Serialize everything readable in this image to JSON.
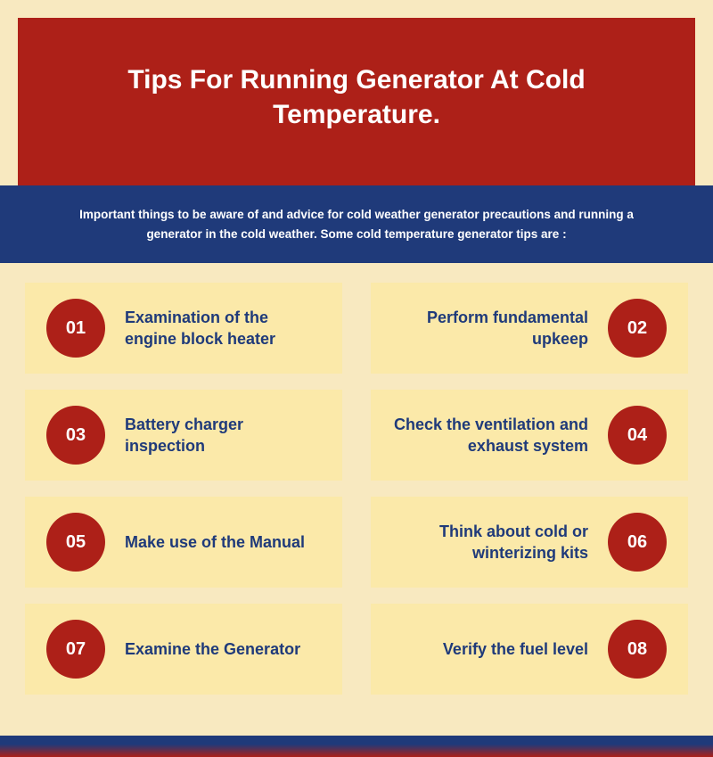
{
  "colors": {
    "page_bg": "#f8e9c0",
    "card_bg": "#fbe9a9",
    "header_bg": "#ad2018",
    "subheader_bg": "#1f3a7a",
    "circle_bg": "#ad2018",
    "title_color": "#ffffff",
    "subtitle_color": "#ffffff",
    "tip_text_color": "#1f3a7a",
    "number_color": "#ffffff"
  },
  "typography": {
    "title_fontsize": 30,
    "title_weight": 900,
    "subtitle_fontsize": 13.5,
    "tip_fontsize": 18,
    "tip_weight": 700,
    "number_fontsize": 20
  },
  "layout": {
    "columns": 2,
    "card_gap_row": 18,
    "card_gap_col": 32,
    "circle_diameter": 66
  },
  "header": {
    "title": "Tips For Running Generator At Cold Temperature."
  },
  "subheader": {
    "text": "Important things to be aware of and advice for cold weather generator precautions and running a generator in the cold weather. Some cold temperature generator tips are :"
  },
  "tips": [
    {
      "num": "01",
      "text": "Examination of the engine block heater",
      "side": "left"
    },
    {
      "num": "02",
      "text": "Perform fundamental upkeep",
      "side": "right"
    },
    {
      "num": "03",
      "text": "Battery charger inspection",
      "side": "left"
    },
    {
      "num": "04",
      "text": "Check the ventilation and exhaust system",
      "side": "right"
    },
    {
      "num": "05",
      "text": "Make use of the Manual",
      "side": "left"
    },
    {
      "num": "06",
      "text": "Think about cold or winterizing kits",
      "side": "right"
    },
    {
      "num": "07",
      "text": "Examine the Generator",
      "side": "left"
    },
    {
      "num": "08",
      "text": "Verify the fuel level",
      "side": "right"
    }
  ]
}
